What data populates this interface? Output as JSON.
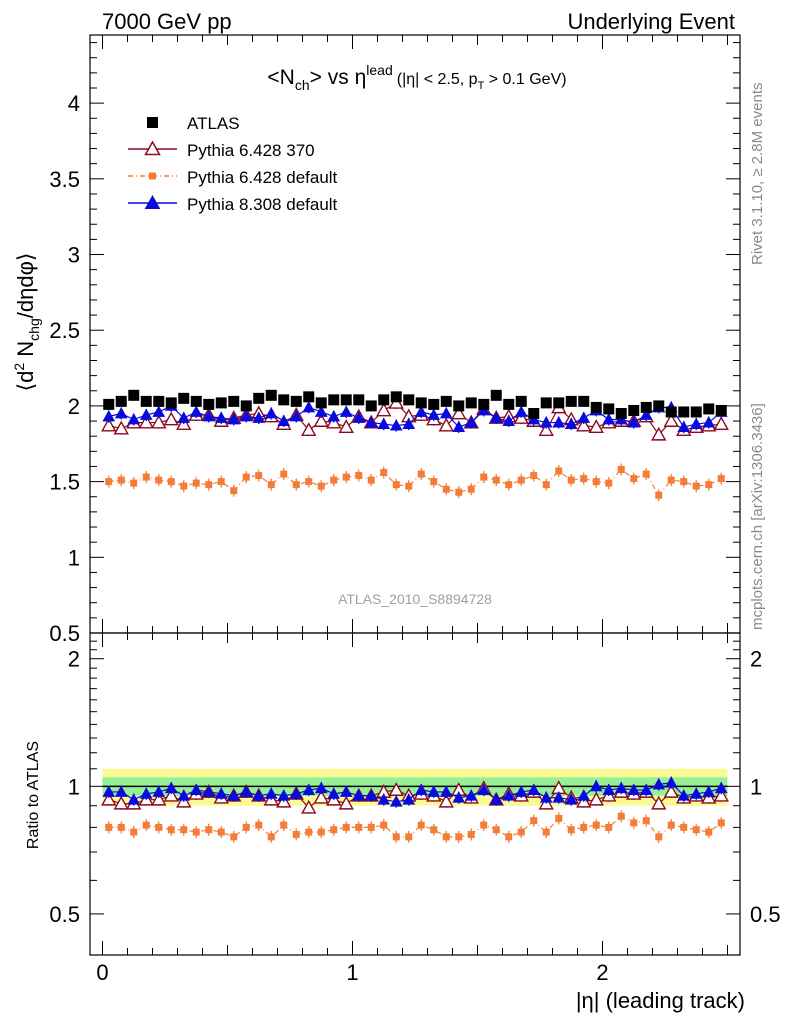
{
  "header": {
    "left": "7000 GeV pp",
    "right": "Underlying Event"
  },
  "side_labels": {
    "rivet": "Rivet 3.1.10, ≥ 2.8M events",
    "mcplots": "mcplots.cern.ch [arXiv:1306.3436]"
  },
  "chart_data": [
    {
      "type": "scatter",
      "panel": "main",
      "title_parts": {
        "main": "<N",
        "main_sub": "ch",
        "main_mid": "> vs η",
        "main_sup": "lead",
        "cut_open": "(|η| < 2.5, p",
        "cut_sub": "T",
        "cut_close": " > 0.1 GeV)"
      },
      "ylabel_parts": {
        "open": "⟨d",
        "sup": "2",
        "n": " N",
        "sub": "chg",
        "close": "/dηdφ⟩"
      },
      "watermark": "ATLAS_2010_S8894728",
      "ylim": [
        0.5,
        4.45
      ],
      "xlim": [
        -0.05,
        2.55
      ],
      "yticks": [
        {
          "v": 0.5,
          "label": "0.5"
        },
        {
          "v": 1,
          "label": "1"
        },
        {
          "v": 1.5,
          "label": "1.5"
        },
        {
          "v": 2,
          "label": "2"
        },
        {
          "v": 2.5,
          "label": "2.5"
        },
        {
          "v": 3,
          "label": "3"
        },
        {
          "v": 3.5,
          "label": "3.5"
        },
        {
          "v": 4,
          "label": "4"
        }
      ],
      "x": [
        0.025,
        0.075,
        0.125,
        0.175,
        0.225,
        0.275,
        0.325,
        0.375,
        0.425,
        0.475,
        0.525,
        0.575,
        0.625,
        0.675,
        0.725,
        0.775,
        0.825,
        0.875,
        0.925,
        0.975,
        1.025,
        1.075,
        1.125,
        1.175,
        1.225,
        1.275,
        1.325,
        1.375,
        1.425,
        1.475,
        1.525,
        1.575,
        1.625,
        1.675,
        1.725,
        1.775,
        1.825,
        1.875,
        1.925,
        1.975,
        2.025,
        2.075,
        2.125,
        2.175,
        2.225,
        2.275,
        2.325,
        2.375,
        2.425,
        2.475
      ],
      "series": [
        {
          "name": "ATLAS",
          "marker": "square",
          "color": "#000000",
          "values": [
            2.01,
            2.03,
            2.07,
            2.03,
            2.03,
            2.02,
            2.05,
            2.03,
            2.01,
            2.02,
            2.03,
            2.0,
            2.05,
            2.07,
            2.04,
            2.03,
            2.06,
            2.02,
            2.04,
            2.04,
            2.04,
            2.0,
            2.04,
            2.06,
            2.04,
            2.02,
            2.01,
            2.03,
            2.0,
            2.02,
            2.01,
            2.07,
            2.01,
            2.03,
            1.95,
            2.02,
            2.02,
            2.03,
            2.03,
            1.99,
            1.98,
            1.95,
            1.97,
            1.99,
            2.0,
            1.96,
            1.96,
            1.96,
            1.98,
            1.97
          ]
        },
        {
          "name": "Pythia 6.428 370",
          "marker": "open-triangle",
          "color": "#8b0a1e",
          "values": [
            1.87,
            1.85,
            1.89,
            1.89,
            1.89,
            1.91,
            1.88,
            1.94,
            1.94,
            1.9,
            1.92,
            1.94,
            1.95,
            1.93,
            1.88,
            1.94,
            1.84,
            1.9,
            1.89,
            1.86,
            1.93,
            1.89,
            1.97,
            2.02,
            1.93,
            1.94,
            1.91,
            1.87,
            1.95,
            1.89,
            1.98,
            1.92,
            1.93,
            1.92,
            1.9,
            1.84,
            1.99,
            1.91,
            1.87,
            1.86,
            1.89,
            1.9,
            1.9,
            1.93,
            1.81,
            1.9,
            1.84,
            1.86,
            1.87,
            1.88
          ]
        },
        {
          "name": "Pythia 6.428 default",
          "marker": "small-square-dashed",
          "color": "#f37d38",
          "values": [
            1.5,
            1.51,
            1.49,
            1.53,
            1.51,
            1.5,
            1.47,
            1.49,
            1.48,
            1.5,
            1.44,
            1.53,
            1.54,
            1.48,
            1.55,
            1.48,
            1.5,
            1.47,
            1.51,
            1.53,
            1.54,
            1.51,
            1.56,
            1.48,
            1.47,
            1.55,
            1.5,
            1.45,
            1.43,
            1.45,
            1.53,
            1.51,
            1.48,
            1.51,
            1.54,
            1.48,
            1.57,
            1.51,
            1.52,
            1.5,
            1.49,
            1.58,
            1.52,
            1.55,
            1.41,
            1.51,
            1.5,
            1.47,
            1.48,
            1.52
          ]
        },
        {
          "name": "Pythia 8.308 default",
          "marker": "filled-triangle",
          "color": "#0a0adc",
          "values": [
            1.93,
            1.95,
            1.91,
            1.94,
            1.96,
            2.0,
            1.92,
            1.96,
            1.93,
            1.92,
            1.91,
            1.93,
            1.92,
            1.95,
            1.9,
            1.93,
            1.99,
            1.96,
            1.93,
            1.96,
            1.92,
            1.89,
            1.88,
            1.87,
            1.88,
            1.96,
            1.94,
            1.95,
            1.86,
            1.89,
            1.97,
            1.92,
            1.9,
            1.96,
            1.91,
            1.89,
            1.89,
            1.88,
            1.92,
            1.97,
            1.91,
            1.91,
            1.89,
            1.94,
            1.99,
            1.99,
            1.86,
            1.88,
            1.89,
            1.96
          ]
        }
      ],
      "legend_position": "top-left"
    },
    {
      "type": "scatter",
      "panel": "ratio",
      "ylabel": "Ratio to ATLAS",
      "xlabel": "|η| (leading track)",
      "scale": "log",
      "ylim": [
        0.4,
        2.3
      ],
      "yticks": [
        {
          "v": 0.5,
          "label": "0.5"
        },
        {
          "v": 1,
          "label": "1"
        },
        {
          "v": 2,
          "label": "2"
        }
      ],
      "xticks": [
        {
          "v": 0,
          "label": "0"
        },
        {
          "v": 1,
          "label": "1"
        },
        {
          "v": 2,
          "label": "2"
        }
      ],
      "band_inner": 0.05,
      "band_outer": 0.1,
      "series": [
        {
          "name": "Pythia 6.428 370",
          "values": [
            0.93,
            0.91,
            0.91,
            0.93,
            0.93,
            0.95,
            0.92,
            0.96,
            0.97,
            0.94,
            0.95,
            0.97,
            0.95,
            0.93,
            0.92,
            0.96,
            0.89,
            0.94,
            0.93,
            0.91,
            0.95,
            0.95,
            0.97,
            0.98,
            0.95,
            0.96,
            0.95,
            0.92,
            0.98,
            0.94,
            0.99,
            0.93,
            0.96,
            0.95,
            0.97,
            0.91,
            0.99,
            0.94,
            0.92,
            0.93,
            0.95,
            0.97,
            0.96,
            0.97,
            0.91,
            0.97,
            0.94,
            0.95,
            0.94,
            0.95
          ]
        },
        {
          "name": "Pythia 6.428 default",
          "values": [
            0.8,
            0.8,
            0.78,
            0.81,
            0.8,
            0.79,
            0.79,
            0.78,
            0.79,
            0.78,
            0.76,
            0.8,
            0.81,
            0.76,
            0.81,
            0.77,
            0.78,
            0.78,
            0.79,
            0.8,
            0.8,
            0.8,
            0.81,
            0.76,
            0.76,
            0.81,
            0.79,
            0.76,
            0.76,
            0.77,
            0.81,
            0.79,
            0.76,
            0.78,
            0.83,
            0.78,
            0.84,
            0.79,
            0.8,
            0.81,
            0.8,
            0.85,
            0.82,
            0.83,
            0.76,
            0.81,
            0.8,
            0.79,
            0.78,
            0.82
          ]
        },
        {
          "name": "Pythia 8.308 default",
          "values": [
            0.97,
            0.97,
            0.93,
            0.96,
            0.97,
            0.99,
            0.95,
            0.98,
            0.97,
            0.96,
            0.95,
            0.97,
            0.95,
            0.96,
            0.95,
            0.96,
            0.98,
            0.99,
            0.96,
            0.97,
            0.95,
            0.95,
            0.93,
            0.92,
            0.93,
            0.98,
            0.97,
            0.97,
            0.94,
            0.95,
            0.98,
            0.93,
            0.95,
            0.97,
            0.98,
            0.94,
            0.94,
            0.93,
            0.95,
            1.0,
            0.98,
            0.99,
            0.98,
            0.98,
            1.01,
            1.02,
            0.95,
            0.96,
            0.97,
            0.99
          ]
        }
      ]
    }
  ]
}
